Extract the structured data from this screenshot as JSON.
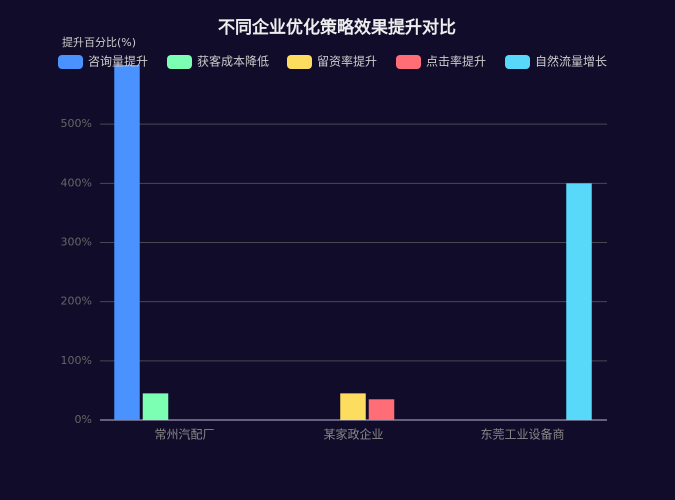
{
  "chart_data": {
    "type": "bar",
    "title": "不同企业优化策略效果提升对比",
    "y_label": "提升百分比(%)",
    "categories": [
      "常州汽配厂",
      "某家政企业",
      "东莞工业设备商"
    ],
    "series": [
      {
        "name": "咨询量提升",
        "color": "#4992ff",
        "values": [
          600,
          null,
          null
        ]
      },
      {
        "name": "获客成本降低",
        "color": "#7cffb2",
        "values": [
          45,
          null,
          null
        ]
      },
      {
        "name": "留资率提升",
        "color": "#fddd60",
        "values": [
          null,
          45,
          null
        ]
      },
      {
        "name": "点击率提升",
        "color": "#ff6e76",
        "values": [
          null,
          35,
          null
        ]
      },
      {
        "name": "自然流量增长",
        "color": "#58d9f9",
        "values": [
          null,
          null,
          400
        ]
      }
    ],
    "ylim": [
      0,
      600
    ],
    "yticks": [
      {
        "value": 0,
        "label": "0%"
      },
      {
        "value": 100,
        "label": "100%"
      },
      {
        "value": 200,
        "label": "200%"
      },
      {
        "value": 300,
        "label": "300%"
      },
      {
        "value": 400,
        "label": "400%"
      },
      {
        "value": 500,
        "label": "500%"
      }
    ],
    "grid": true
  }
}
